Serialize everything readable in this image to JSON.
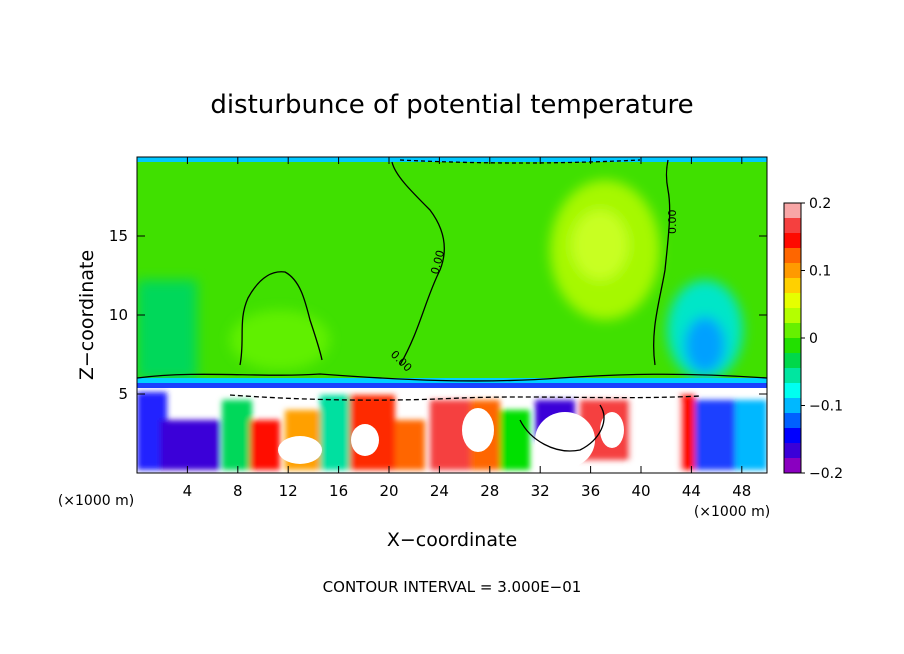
{
  "chart_data": {
    "type": "heatmap",
    "title": "disturbunce of potential temperature",
    "xlabel": "X−coordinate",
    "ylabel": "Z−coordinate",
    "x_unit_left": "(×1000 m)",
    "x_unit_right": "(×1000 m)",
    "footer": "CONTOUR INTERVAL = 3.000E−01",
    "xlim": [
      0,
      50
    ],
    "ylim": [
      0,
      20
    ],
    "x_ticks": [
      4,
      8,
      12,
      16,
      20,
      24,
      28,
      32,
      36,
      40,
      44,
      48
    ],
    "y_ticks": [
      5,
      10,
      15
    ],
    "colorbar": {
      "range": [
        -0.2,
        0.2
      ],
      "tick_values": [
        0.2,
        0.1,
        0,
        -0.1,
        -0.2
      ],
      "tick_labels": [
        "0.2",
        "0.1",
        "0",
        "−0.1",
        "−0.2"
      ],
      "colors": [
        "#f8a6a6",
        "#f5403f",
        "#fe0a00",
        "#fe6600",
        "#ff9a00",
        "#ffd000",
        "#e6ff00",
        "#b4ff00",
        "#66f000",
        "#22e000",
        "#00d84a",
        "#00e6a0",
        "#00fff0",
        "#00b8ff",
        "#0060ff",
        "#0000ff",
        "#3a00d8",
        "#8a00c0"
      ]
    },
    "contour_labels": [
      "0.00",
      "0.00",
      "0.00"
    ],
    "field_regions": [
      {
        "name": "upper-domain",
        "x": [
          0,
          50
        ],
        "z": [
          5.5,
          20
        ],
        "value": 0.02
      },
      {
        "name": "weak-positive-center",
        "x": [
          34,
          38
        ],
        "z": [
          13.5,
          16
        ],
        "value": 0.06
      },
      {
        "name": "cool-anomaly-right",
        "x": [
          43,
          46
        ],
        "z": [
          6,
          10
        ],
        "value": -0.06
      },
      {
        "name": "boundary-layer",
        "x": [
          0,
          50
        ],
        "z": [
          0,
          5.5
        ],
        "value": "mixed"
      }
    ]
  }
}
